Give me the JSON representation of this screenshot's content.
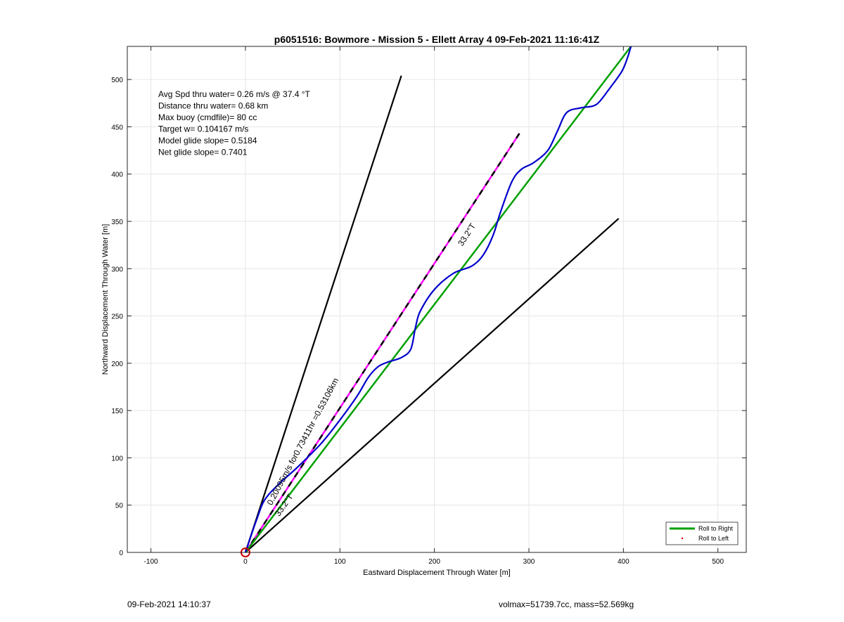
{
  "chart_data": {
    "type": "line",
    "title": "p6051516: Bowmore - Mission 5 - Ellett Array 4 09-Feb-2021 11:16:41Z",
    "xlabel": "Eastward Displacement Through Water [m]",
    "ylabel": "Northward Displacement Through Water [m]",
    "xlim": [
      -125,
      530
    ],
    "ylim": [
      0,
      535
    ],
    "xticks": [
      -100,
      0,
      100,
      200,
      300,
      400,
      500
    ],
    "yticks": [
      0,
      50,
      100,
      150,
      200,
      250,
      300,
      350,
      400,
      450,
      500
    ],
    "xtick_labels": [
      "-100",
      "0",
      "100",
      "200",
      "300",
      "400",
      "500"
    ],
    "ytick_labels": [
      "0",
      "50",
      "100",
      "150",
      "200",
      "250",
      "300",
      "350",
      "400",
      "450",
      "500"
    ],
    "grid": true,
    "legend_position": "bottom-right",
    "info_lines": [
      "Avg Spd thru water=  0.26 m/s @  37.4 °T",
      "Distance thru water=  0.68 km",
      "Max buoy (cmdfile)= 80 cc",
      "Target w= 0.104167 m/s",
      "Model glide slope= 0.5184",
      "Net glide slope= 0.7401"
    ],
    "annotations": {
      "heading_upper": "33.2°T",
      "heading_lower": "33.2°T",
      "speed_label": "0.20095m/s for0.73411hr =0.53106km"
    },
    "series": [
      {
        "name": "Roll to Right",
        "color": "#00a000",
        "style": "solid",
        "x": [
          0,
          408
        ],
        "y": [
          0,
          535
        ]
      },
      {
        "name": "Roll to Left",
        "color": "#ff0000",
        "style": "dot",
        "x": [],
        "y": []
      }
    ],
    "lines": [
      {
        "id": "cone-left",
        "color": "#000000",
        "x": [
          0,
          165
        ],
        "y": [
          0,
          504
        ]
      },
      {
        "id": "cone-right",
        "color": "#000000",
        "x": [
          0,
          395
        ],
        "y": [
          0,
          353
        ]
      },
      {
        "id": "target-dashed",
        "color": "#000000",
        "dash_color": "#ff00ff",
        "x": [
          0,
          290
        ],
        "y": [
          0,
          443
        ]
      }
    ],
    "track": {
      "color": "#0000cc",
      "x": [
        0,
        5,
        12,
        20,
        35,
        55,
        80,
        100,
        118,
        130,
        140,
        150,
        165,
        175,
        180,
        185,
        200,
        220,
        240,
        252,
        262,
        270,
        282,
        292,
        305,
        320,
        330,
        340,
        355,
        368,
        375,
        385,
        398,
        404,
        408
      ],
      "y": [
        0,
        15,
        35,
        55,
        72,
        90,
        115,
        140,
        165,
        185,
        196,
        201,
        206,
        215,
        238,
        255,
        278,
        295,
        303,
        315,
        335,
        360,
        392,
        405,
        412,
        425,
        445,
        465,
        470,
        472,
        477,
        490,
        508,
        522,
        535
      ]
    },
    "origin_marker": {
      "x": 0,
      "y": 0,
      "color": "#cc0000"
    }
  },
  "footer": {
    "left": "09-Feb-2021 14:10:37",
    "right": "volmax=51739.7cc, mass=52.569kg"
  },
  "legend": {
    "entries": [
      "Roll to Right",
      "Roll to Left"
    ]
  }
}
